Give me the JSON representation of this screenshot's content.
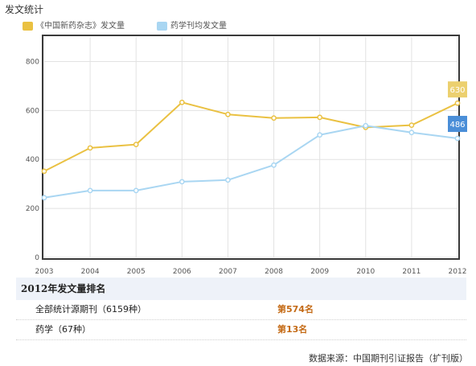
{
  "page_title": "发文统计",
  "colors": {
    "magazine": "#eac142",
    "average": "#a9d6f2",
    "magazine_label_bg": "#ecd06f",
    "average_label_bg": "#4a8ed8"
  },
  "legend": {
    "magazine": "《中国新药杂志》发文量",
    "average": "药学刊均发文量"
  },
  "chart_data": {
    "type": "line",
    "title": "",
    "xlabel": "",
    "ylabel": "",
    "x": [
      "2003",
      "2004",
      "2005",
      "2006",
      "2007",
      "2008",
      "2009",
      "2010",
      "2011",
      "2012"
    ],
    "ylim": [
      0,
      900
    ],
    "yticks": [
      "0",
      "200",
      "400",
      "600",
      "800"
    ],
    "grid": true,
    "legend_position": "top-left",
    "series": [
      {
        "name": "《中国新药杂志》发文量",
        "values": [
          352,
          447,
          461,
          633,
          584,
          569,
          572,
          531,
          540,
          630
        ]
      },
      {
        "name": "药学刊均发文量",
        "values": [
          244,
          273,
          273,
          309,
          316,
          377,
          500,
          538,
          510,
          486
        ]
      }
    ],
    "end_labels": [
      "630",
      "486"
    ]
  },
  "ranking": {
    "title": "2012年发文量排名",
    "rows": [
      {
        "label": "全部统计源期刊（6159种）",
        "value": "第574名"
      },
      {
        "label": "药学（67种）",
        "value": "第13名"
      }
    ]
  },
  "source_note": "数据来源：中国期刊引证报告（扩刊版）"
}
